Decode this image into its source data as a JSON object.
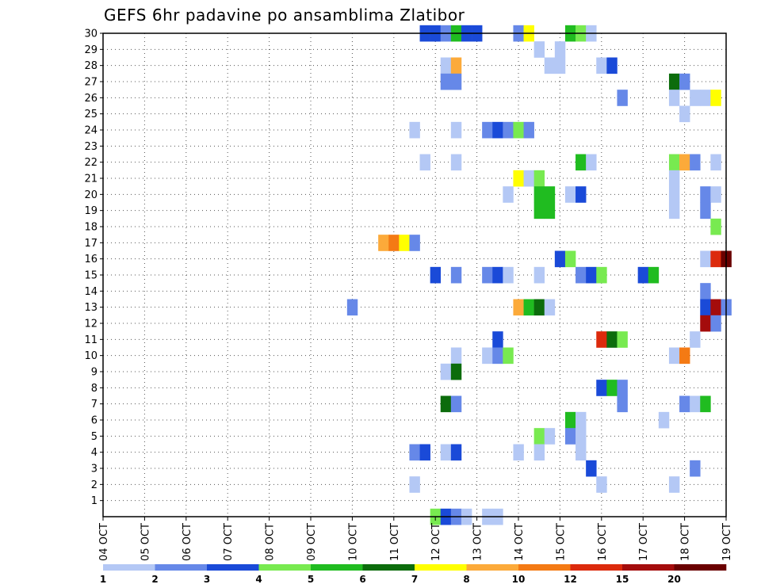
{
  "chart_data": {
    "type": "heatmap",
    "title": "GEFS 6hr padavine po ansamblima Zlatibor",
    "xlabel": "",
    "ylabel": "",
    "x_ticks": [
      "04 OCT",
      "05 OCT",
      "06 OCT",
      "07 OCT",
      "08 OCT",
      "09 OCT",
      "10 OCT",
      "11 OCT",
      "12 OCT",
      "13 OCT",
      "14 OCT",
      "15 OCT",
      "16 OCT",
      "17 OCT",
      "18 OCT",
      "19 OCT"
    ],
    "y_ticks": [
      1,
      2,
      3,
      4,
      5,
      6,
      7,
      8,
      9,
      10,
      11,
      12,
      13,
      14,
      15,
      16,
      17,
      18,
      19,
      20,
      21,
      22,
      23,
      24,
      25,
      26,
      27,
      28,
      29,
      30
    ],
    "xlim": [
      0,
      60
    ],
    "ylim": [
      0,
      30
    ],
    "grid": true,
    "legend": {
      "placement": "bottom",
      "levels": [
        "1",
        "2",
        "3",
        "4",
        "5",
        "6",
        "7",
        "8",
        "10",
        "12",
        "15",
        "20"
      ],
      "colors": [
        "#b4c8f5",
        "#6688e8",
        "#1a4ad8",
        "#78ea50",
        "#20bc20",
        "#0c6c0c",
        "#ffff00",
        "#fcaa3a",
        "#f47a14",
        "#dc2a0c",
        "#a40c0c",
        "#6a0000"
      ]
    },
    "cells": [
      [
        31,
        30,
        2
      ],
      [
        32,
        30,
        2
      ],
      [
        33,
        30,
        1
      ],
      [
        34,
        30,
        4
      ],
      [
        35,
        30,
        2
      ],
      [
        36,
        30,
        2
      ],
      [
        40,
        30,
        1
      ],
      [
        41,
        30,
        6
      ],
      [
        45,
        30,
        4
      ],
      [
        46,
        30,
        3
      ],
      [
        47,
        30,
        0
      ],
      [
        42,
        29,
        0
      ],
      [
        44,
        29,
        0
      ],
      [
        33,
        28,
        0
      ],
      [
        34,
        28,
        7
      ],
      [
        43,
        28,
        0
      ],
      [
        44,
        28,
        0
      ],
      [
        48,
        28,
        0
      ],
      [
        49,
        28,
        2
      ],
      [
        33,
        27,
        1
      ],
      [
        34,
        27,
        1
      ],
      [
        55,
        27,
        5
      ],
      [
        56,
        27,
        1
      ],
      [
        50,
        26,
        1
      ],
      [
        55,
        26,
        0
      ],
      [
        57,
        26,
        0
      ],
      [
        58,
        26,
        0
      ],
      [
        59,
        26,
        6
      ],
      [
        56,
        25,
        0
      ],
      [
        30,
        24,
        0
      ],
      [
        34,
        24,
        0
      ],
      [
        37,
        24,
        1
      ],
      [
        38,
        24,
        2
      ],
      [
        39,
        24,
        1
      ],
      [
        40,
        24,
        3
      ],
      [
        41,
        24,
        1
      ],
      [
        31,
        22,
        0
      ],
      [
        34,
        22,
        0
      ],
      [
        46,
        22,
        4
      ],
      [
        47,
        22,
        0
      ],
      [
        55,
        22,
        3
      ],
      [
        56,
        22,
        7
      ],
      [
        57,
        22,
        1
      ],
      [
        59,
        22,
        0
      ],
      [
        40,
        21,
        6
      ],
      [
        41,
        21,
        0
      ],
      [
        42,
        21,
        3
      ],
      [
        55,
        21,
        0
      ],
      [
        39,
        20,
        0
      ],
      [
        42,
        20,
        4
      ],
      [
        43,
        20,
        4
      ],
      [
        45,
        20,
        0
      ],
      [
        46,
        20,
        2
      ],
      [
        55,
        20,
        0
      ],
      [
        58,
        20,
        1
      ],
      [
        59,
        20,
        0
      ],
      [
        42,
        19,
        4
      ],
      [
        43,
        19,
        4
      ],
      [
        55,
        19,
        0
      ],
      [
        58,
        19,
        1
      ],
      [
        59,
        18,
        3
      ],
      [
        27,
        17,
        7
      ],
      [
        28,
        17,
        8
      ],
      [
        29,
        17,
        6
      ],
      [
        30,
        17,
        1
      ],
      [
        44,
        16,
        2
      ],
      [
        45,
        16,
        3
      ],
      [
        58,
        16,
        0
      ],
      [
        59,
        16,
        9
      ],
      [
        60,
        16,
        11
      ],
      [
        32,
        15,
        2
      ],
      [
        34,
        15,
        1
      ],
      [
        37,
        15,
        1
      ],
      [
        38,
        15,
        2
      ],
      [
        39,
        15,
        0
      ],
      [
        42,
        15,
        0
      ],
      [
        46,
        15,
        1
      ],
      [
        47,
        15,
        2
      ],
      [
        48,
        15,
        3
      ],
      [
        52,
        15,
        2
      ],
      [
        53,
        15,
        4
      ],
      [
        58,
        14,
        1
      ],
      [
        24,
        13,
        1
      ],
      [
        40,
        13,
        7
      ],
      [
        41,
        13,
        4
      ],
      [
        42,
        13,
        5
      ],
      [
        43,
        13,
        0
      ],
      [
        58,
        13,
        2
      ],
      [
        59,
        13,
        10
      ],
      [
        60,
        13,
        1
      ],
      [
        58,
        12,
        10
      ],
      [
        59,
        12,
        1
      ],
      [
        38,
        11,
        2
      ],
      [
        48,
        11,
        9
      ],
      [
        49,
        11,
        5
      ],
      [
        50,
        11,
        3
      ],
      [
        57,
        11,
        0
      ],
      [
        34,
        10,
        0
      ],
      [
        37,
        10,
        0
      ],
      [
        38,
        10,
        1
      ],
      [
        39,
        10,
        3
      ],
      [
        55,
        10,
        0
      ],
      [
        56,
        10,
        8
      ],
      [
        33,
        9,
        0
      ],
      [
        34,
        9,
        5
      ],
      [
        48,
        8,
        2
      ],
      [
        49,
        8,
        4
      ],
      [
        50,
        8,
        1
      ],
      [
        33,
        7,
        5
      ],
      [
        34,
        7,
        1
      ],
      [
        50,
        7,
        1
      ],
      [
        56,
        7,
        1
      ],
      [
        57,
        7,
        0
      ],
      [
        58,
        7,
        4
      ],
      [
        45,
        6,
        4
      ],
      [
        46,
        6,
        0
      ],
      [
        54,
        6,
        0
      ],
      [
        42,
        5,
        3
      ],
      [
        43,
        5,
        0
      ],
      [
        45,
        5,
        1
      ],
      [
        46,
        5,
        0
      ],
      [
        30,
        4,
        1
      ],
      [
        31,
        4,
        2
      ],
      [
        33,
        4,
        0
      ],
      [
        34,
        4,
        2
      ],
      [
        40,
        4,
        0
      ],
      [
        42,
        4,
        0
      ],
      [
        46,
        4,
        0
      ],
      [
        47,
        3,
        2
      ],
      [
        57,
        3,
        1
      ],
      [
        30,
        2,
        0
      ],
      [
        48,
        2,
        0
      ],
      [
        55,
        2,
        0
      ],
      [
        32,
        0,
        3
      ],
      [
        33,
        0,
        2
      ],
      [
        34,
        0,
        1
      ],
      [
        35,
        0,
        0
      ],
      [
        37,
        0,
        0
      ],
      [
        38,
        0,
        0
      ]
    ]
  }
}
